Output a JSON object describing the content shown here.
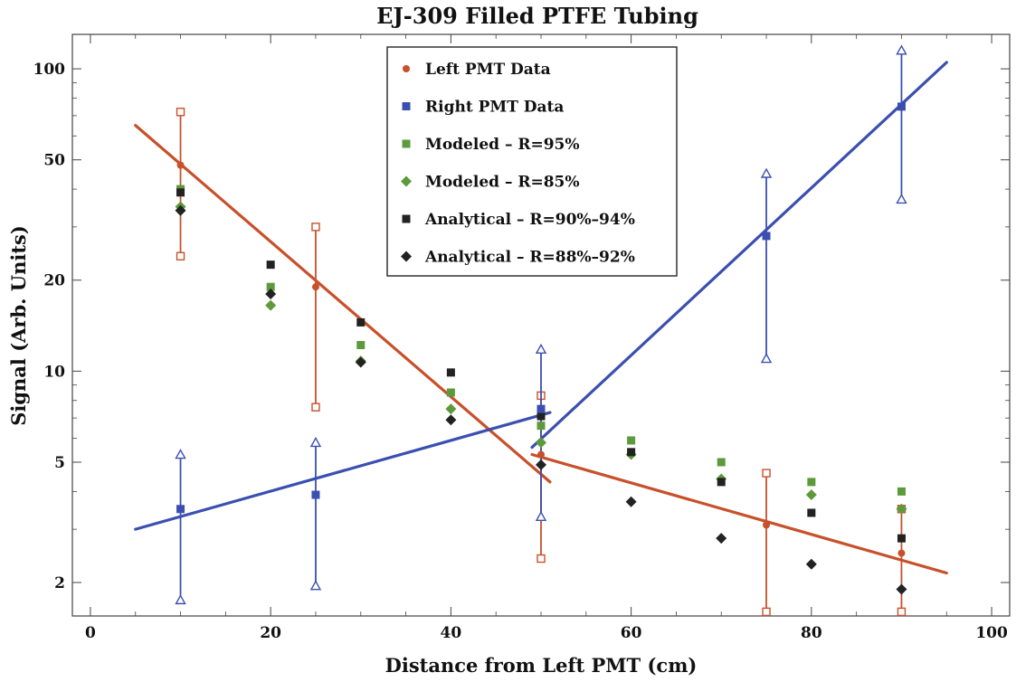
{
  "chart_data": {
    "type": "scatter",
    "title": "EJ-309 Filled PTFE Tubing",
    "xlabel": "Distance from Left PMT (cm)",
    "ylabel": "Signal (Arb. Units)",
    "xlim": [
      -2,
      102
    ],
    "ylim": [
      1.55,
      130
    ],
    "y_scale": "log",
    "x_ticks": [
      0,
      20,
      40,
      60,
      80,
      100
    ],
    "y_ticks": [
      2,
      5,
      10,
      20,
      50,
      100
    ],
    "grid": false,
    "legend_position": "top-center",
    "series": [
      {
        "name": "Left PMT Data",
        "marker": "circle",
        "color": "#c8502a",
        "points": [
          [
            10,
            48
          ],
          [
            25,
            19
          ],
          [
            50,
            5.3
          ],
          [
            75,
            3.1
          ],
          [
            90,
            2.5
          ]
        ],
        "error_bars": [
          [
            10,
            24,
            72
          ],
          [
            25,
            7.6,
            30
          ],
          [
            50,
            2.4,
            8.3
          ],
          [
            75,
            1.6,
            4.6
          ],
          [
            90,
            1.6,
            3.5
          ]
        ]
      },
      {
        "name": "Right PMT Data",
        "marker": "square",
        "color": "#3b4fb0",
        "points": [
          [
            10,
            3.5
          ],
          [
            25,
            3.9
          ],
          [
            50,
            7.5
          ],
          [
            75,
            28
          ],
          [
            90,
            75
          ]
        ],
        "error_bars": [
          [
            10,
            1.75,
            5.3
          ],
          [
            25,
            1.95,
            5.8
          ],
          [
            50,
            3.3,
            11.8
          ],
          [
            75,
            11,
            45
          ],
          [
            90,
            37,
            115
          ]
        ]
      },
      {
        "name": "Modeled – R=95%",
        "marker": "square",
        "color": "#5c9a3c",
        "points": [
          [
            10,
            40
          ],
          [
            20,
            19
          ],
          [
            30,
            12.2
          ],
          [
            40,
            8.5
          ],
          [
            50,
            6.6
          ],
          [
            60,
            5.9
          ],
          [
            70,
            5.0
          ],
          [
            80,
            4.3
          ],
          [
            90,
            4.0
          ]
        ]
      },
      {
        "name": "Modeled – R=85%",
        "marker": "diamond",
        "color": "#5c9a3c",
        "points": [
          [
            10,
            35
          ],
          [
            20,
            16.5
          ],
          [
            30,
            10.8
          ],
          [
            40,
            7.5
          ],
          [
            50,
            5.8
          ],
          [
            60,
            5.3
          ],
          [
            70,
            4.4
          ],
          [
            80,
            3.9
          ],
          [
            90,
            3.5
          ]
        ]
      },
      {
        "name": "Analytical – R=90%–94%",
        "marker": "square",
        "color": "#222222",
        "points": [
          [
            10,
            39
          ],
          [
            20,
            22.5
          ],
          [
            30,
            14.5
          ],
          [
            40,
            9.9
          ],
          [
            50,
            7.1
          ],
          [
            60,
            5.4
          ],
          [
            70,
            4.3
          ],
          [
            80,
            3.4
          ],
          [
            90,
            2.8
          ]
        ]
      },
      {
        "name": "Analytical – R=88%–92%",
        "marker": "diamond",
        "color": "#222222",
        "points": [
          [
            10,
            34
          ],
          [
            20,
            18
          ],
          [
            30,
            10.7
          ],
          [
            40,
            6.9
          ],
          [
            50,
            4.9
          ],
          [
            60,
            3.7
          ],
          [
            70,
            2.8
          ],
          [
            80,
            2.3
          ],
          [
            90,
            1.9
          ]
        ]
      }
    ],
    "fit_lines": [
      {
        "color": "#c8502a",
        "points": [
          [
            5,
            65
          ],
          [
            51,
            4.3
          ]
        ]
      },
      {
        "color": "#c8502a",
        "points": [
          [
            49,
            5.3
          ],
          [
            95,
            2.15
          ]
        ]
      },
      {
        "color": "#3b4fb0",
        "points": [
          [
            5,
            3.0
          ],
          [
            51,
            7.3
          ]
        ]
      },
      {
        "color": "#3b4fb0",
        "points": [
          [
            49,
            5.6
          ],
          [
            95,
            105
          ]
        ]
      }
    ]
  }
}
